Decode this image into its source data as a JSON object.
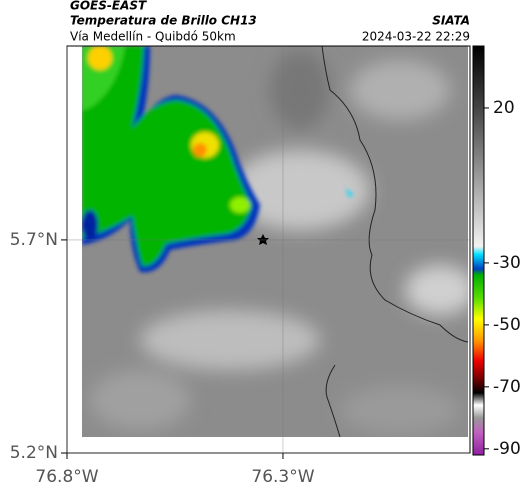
{
  "chart_data": {
    "type": "map",
    "title": "GOES-EAST",
    "subtitle": "Temperatura de Brillo CH13",
    "source": "SIATA",
    "caption": "Vía Medellín - Quibdó 50km",
    "timestamp": "2024-03-22 22:29",
    "xlim": [
      -76.8,
      -75.867
    ],
    "ylim": [
      5.2,
      6.155
    ],
    "xticks": [
      {
        "value": -76.8,
        "label": "76.8°W"
      },
      {
        "value": -76.3,
        "label": "76.3°W"
      }
    ],
    "yticks": [
      {
        "value": 5.7,
        "label": "5.7°N"
      },
      {
        "value": 5.2,
        "label": "5.2°N"
      }
    ],
    "grid": true,
    "colorbar": {
      "lim": [
        -92,
        40
      ],
      "ticks": [
        20,
        -30,
        -50,
        -70,
        -90
      ]
    }
  }
}
